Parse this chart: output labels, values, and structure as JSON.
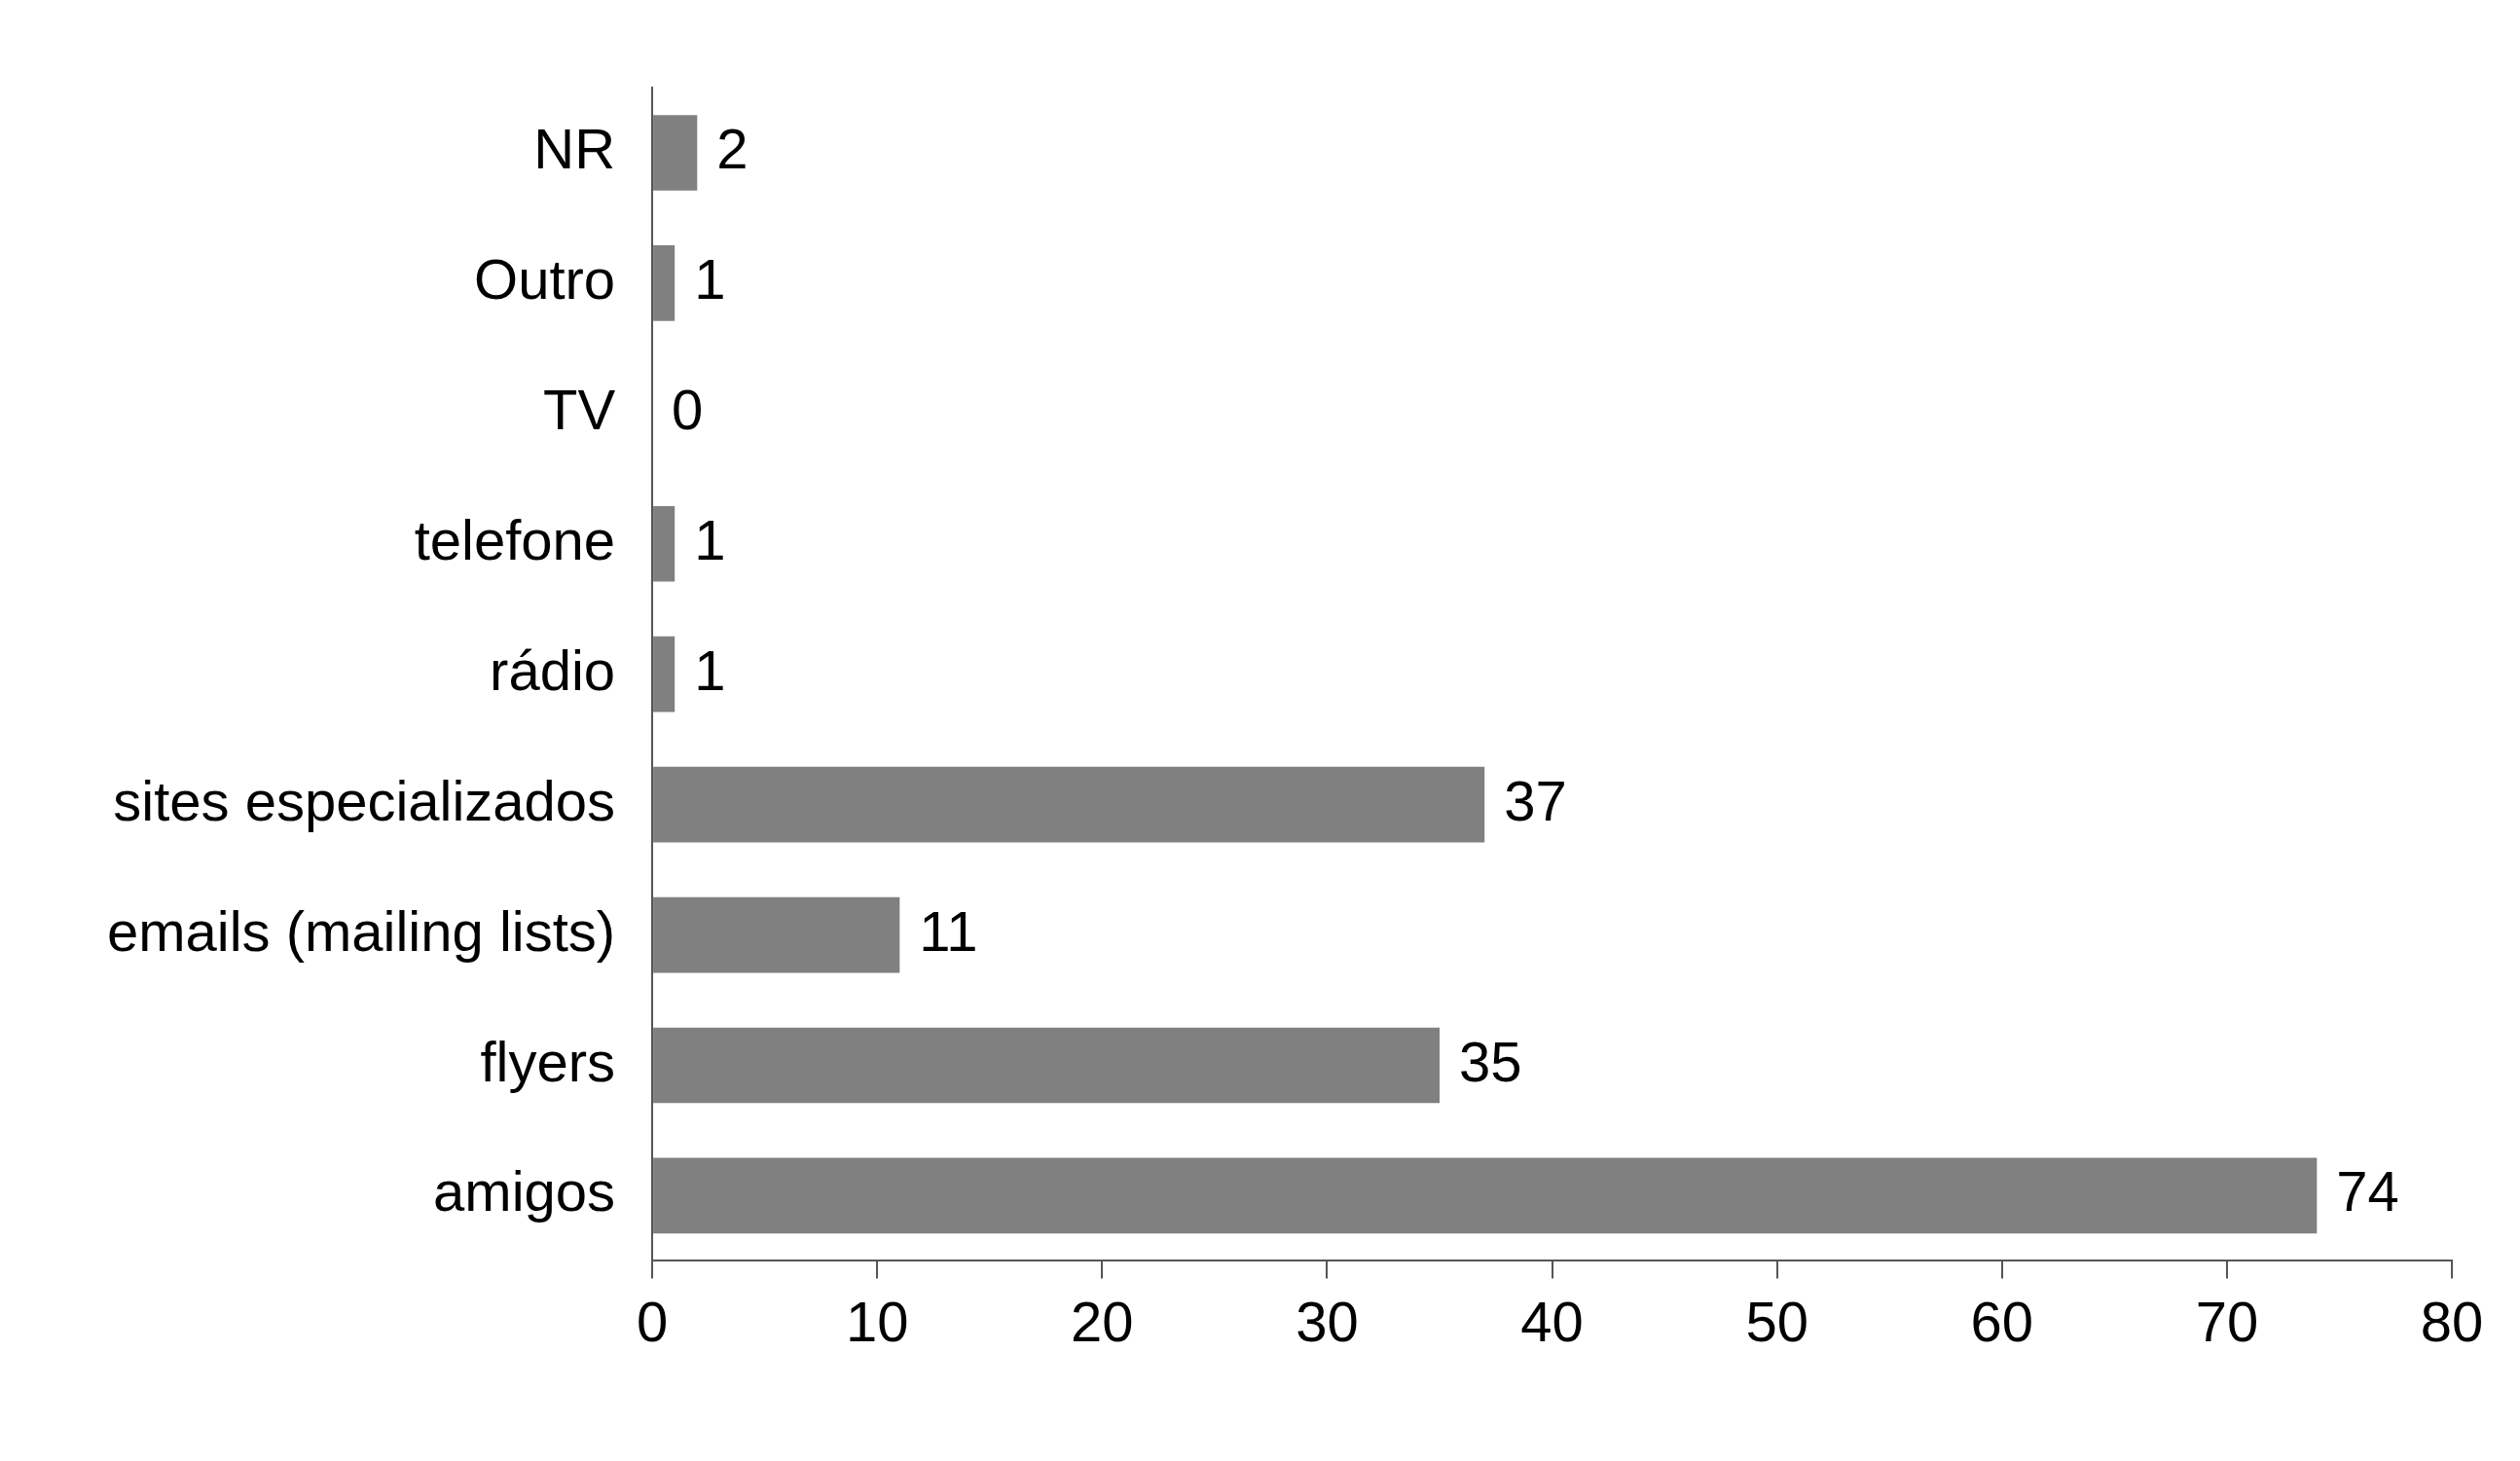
{
  "chart_data": {
    "type": "bar",
    "orientation": "horizontal",
    "categories": [
      "NR",
      "Outro",
      "TV",
      "telefone",
      "rádio",
      "sites especializados",
      "emails (mailing lists)",
      "flyers",
      "amigos"
    ],
    "values": [
      2,
      1,
      0,
      1,
      1,
      37,
      11,
      35,
      74
    ],
    "color": "#808080",
    "xlim": [
      0,
      80
    ],
    "xticks": [
      0,
      10,
      20,
      30,
      40,
      50,
      60,
      70,
      80
    ],
    "grid": false,
    "legend": false,
    "data_labels": true
  }
}
